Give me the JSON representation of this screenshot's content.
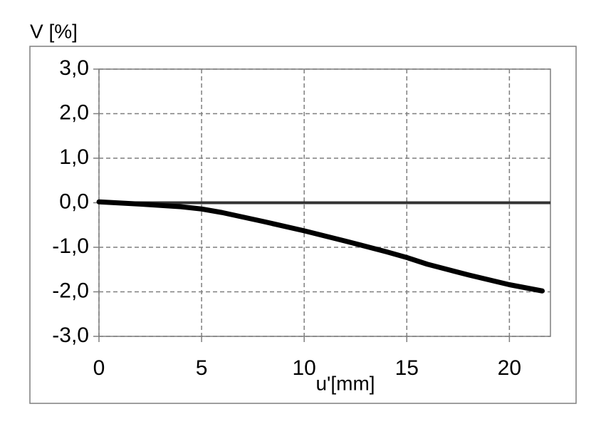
{
  "chart_data": {
    "type": "line",
    "y_label": "V [%]",
    "x_label": "u'[mm]",
    "x": [
      0,
      2,
      4,
      5,
      6,
      8,
      10,
      12,
      14,
      15,
      16,
      18,
      20,
      21.6
    ],
    "series": [
      {
        "color": "#000000",
        "values": [
          0.02,
          -0.03,
          -0.09,
          -0.14,
          -0.22,
          -0.42,
          -0.63,
          -0.86,
          -1.1,
          -1.23,
          -1.38,
          -1.62,
          -1.84,
          -1.98
        ]
      }
    ],
    "xlim": [
      0,
      22
    ],
    "xticks": [
      0,
      5,
      10,
      15,
      20
    ],
    "ylim": [
      -3,
      3
    ],
    "yticks": [
      {
        "value": -3,
        "label": "-3,0"
      },
      {
        "value": -2,
        "label": "-2,0"
      },
      {
        "value": -1,
        "label": "-1,0"
      },
      {
        "value": 0,
        "label": "0,0"
      },
      {
        "value": 1,
        "label": "1,0"
      },
      {
        "value": 2,
        "label": "2,0"
      },
      {
        "value": 3,
        "label": "3,0"
      }
    ],
    "grid": true
  }
}
